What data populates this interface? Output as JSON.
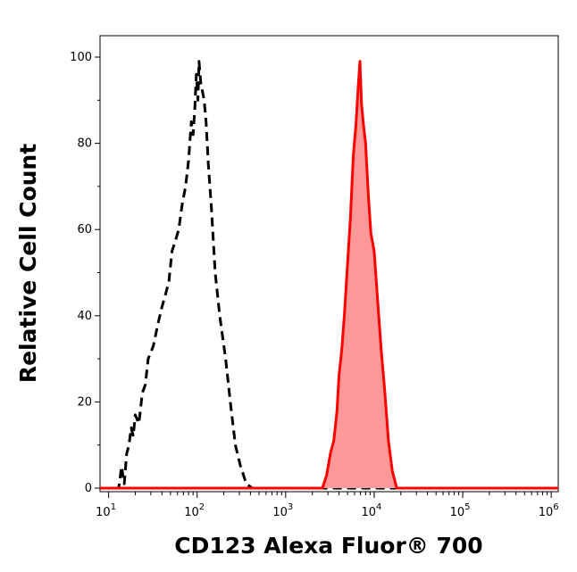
{
  "chart_data": {
    "type": "area",
    "xlabel": "CD123 Alexa Fluor® 700",
    "ylabel": "Relative Cell Count",
    "x_scale": "log",
    "xlim": [
      8,
      1200000
    ],
    "ylim": [
      0,
      100
    ],
    "x_ticks": [
      {
        "value": 10,
        "base": "10",
        "exp": "1"
      },
      {
        "value": 100,
        "base": "10",
        "exp": "2"
      },
      {
        "value": 1000,
        "base": "10",
        "exp": "3"
      },
      {
        "value": 10000,
        "base": "10",
        "exp": "4"
      },
      {
        "value": 100000,
        "base": "10",
        "exp": "5"
      },
      {
        "value": 1000000,
        "base": "10",
        "exp": "6"
      }
    ],
    "y_ticks": [
      {
        "value": 0,
        "label": "0"
      },
      {
        "value": 20,
        "label": "20"
      },
      {
        "value": 40,
        "label": "40"
      },
      {
        "value": 60,
        "label": "60"
      },
      {
        "value": 80,
        "label": "80"
      },
      {
        "value": 100,
        "label": "100"
      }
    ],
    "grid": false,
    "series": [
      {
        "style": "dashed",
        "color": "#000000",
        "fill": "none",
        "points": [
          [
            8,
            0
          ],
          [
            13,
            0
          ],
          [
            14,
            5
          ],
          [
            15,
            1
          ],
          [
            16,
            8
          ],
          [
            17,
            10
          ],
          [
            18,
            14
          ],
          [
            19,
            12
          ],
          [
            20,
            17
          ],
          [
            22,
            15
          ],
          [
            24,
            22
          ],
          [
            26,
            24
          ],
          [
            28,
            30
          ],
          [
            32,
            33
          ],
          [
            36,
            38
          ],
          [
            40,
            42
          ],
          [
            44,
            45
          ],
          [
            48,
            48
          ],
          [
            52,
            55
          ],
          [
            56,
            57
          ],
          [
            62,
            60
          ],
          [
            68,
            66
          ],
          [
            74,
            70
          ],
          [
            80,
            76
          ],
          [
            86,
            85
          ],
          [
            90,
            82
          ],
          [
            94,
            88
          ],
          [
            98,
            96
          ],
          [
            102,
            90
          ],
          [
            105,
            99
          ],
          [
            110,
            94
          ],
          [
            115,
            92
          ],
          [
            120,
            90
          ],
          [
            126,
            85
          ],
          [
            134,
            75
          ],
          [
            145,
            65
          ],
          [
            160,
            50
          ],
          [
            180,
            40
          ],
          [
            210,
            30
          ],
          [
            240,
            19
          ],
          [
            270,
            10
          ],
          [
            310,
            5
          ],
          [
            360,
            1
          ],
          [
            420,
            0
          ],
          [
            1200000,
            0
          ]
        ]
      },
      {
        "style": "solid",
        "color": "#ff0000",
        "fill": "#ff9999",
        "points": [
          [
            8,
            0
          ],
          [
            2600,
            0
          ],
          [
            2900,
            3
          ],
          [
            3200,
            8
          ],
          [
            3500,
            11
          ],
          [
            3800,
            18
          ],
          [
            4000,
            26
          ],
          [
            4300,
            32
          ],
          [
            4600,
            40
          ],
          [
            5000,
            52
          ],
          [
            5400,
            63
          ],
          [
            5800,
            77
          ],
          [
            6200,
            84
          ],
          [
            6600,
            93
          ],
          [
            6900,
            99
          ],
          [
            7200,
            89
          ],
          [
            7600,
            84
          ],
          [
            8000,
            80
          ],
          [
            8600,
            68
          ],
          [
            9200,
            59
          ],
          [
            10000,
            55
          ],
          [
            11000,
            43
          ],
          [
            12000,
            32
          ],
          [
            13000,
            24
          ],
          [
            14500,
            11
          ],
          [
            16000,
            4
          ],
          [
            18000,
            0
          ],
          [
            1200000,
            0
          ]
        ]
      }
    ]
  }
}
